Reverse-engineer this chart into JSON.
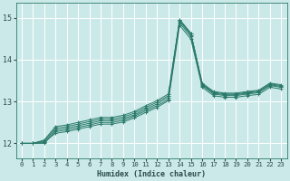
{
  "xlabel": "Humidex (Indice chaleur)",
  "xlim": [
    -0.5,
    23.5
  ],
  "ylim": [
    11.65,
    15.35
  ],
  "yticks": [
    12,
    13,
    14,
    15
  ],
  "xticks": [
    0,
    1,
    2,
    3,
    4,
    5,
    6,
    7,
    8,
    9,
    10,
    11,
    12,
    13,
    14,
    15,
    16,
    17,
    18,
    19,
    20,
    21,
    22,
    23
  ],
  "bg_color": "#cce9e9",
  "grid_color": "#ffffff",
  "line_color": "#2a7a6a",
  "lines": [
    [
      12.0,
      12.0,
      12.0,
      12.28,
      12.32,
      12.38,
      12.44,
      12.5,
      12.5,
      12.55,
      12.65,
      12.78,
      12.9,
      13.05,
      14.95,
      14.62,
      13.42,
      13.22,
      13.18,
      13.18,
      13.22,
      13.25,
      13.42,
      13.38
    ],
    [
      12.0,
      12.0,
      12.02,
      12.32,
      12.36,
      12.42,
      12.48,
      12.54,
      12.54,
      12.59,
      12.68,
      12.82,
      12.94,
      13.1,
      14.88,
      14.55,
      13.38,
      13.18,
      13.14,
      13.14,
      13.18,
      13.21,
      13.38,
      13.34
    ],
    [
      12.0,
      12.0,
      12.04,
      12.24,
      12.28,
      12.34,
      12.4,
      12.46,
      12.46,
      12.51,
      12.61,
      12.74,
      12.86,
      13.02,
      14.82,
      14.49,
      13.34,
      13.14,
      13.1,
      13.1,
      13.14,
      13.17,
      13.34,
      13.3
    ],
    [
      12.0,
      12.0,
      12.06,
      12.36,
      12.4,
      12.46,
      12.52,
      12.58,
      12.58,
      12.63,
      12.72,
      12.86,
      12.98,
      13.14,
      14.92,
      14.59,
      13.4,
      13.2,
      13.16,
      13.16,
      13.2,
      13.23,
      13.4,
      13.36
    ],
    [
      12.0,
      12.0,
      12.08,
      12.4,
      12.44,
      12.5,
      12.56,
      12.62,
      12.62,
      12.67,
      12.76,
      12.9,
      13.02,
      13.18,
      14.96,
      14.63,
      13.44,
      13.24,
      13.2,
      13.2,
      13.24,
      13.27,
      13.44,
      13.4
    ]
  ]
}
